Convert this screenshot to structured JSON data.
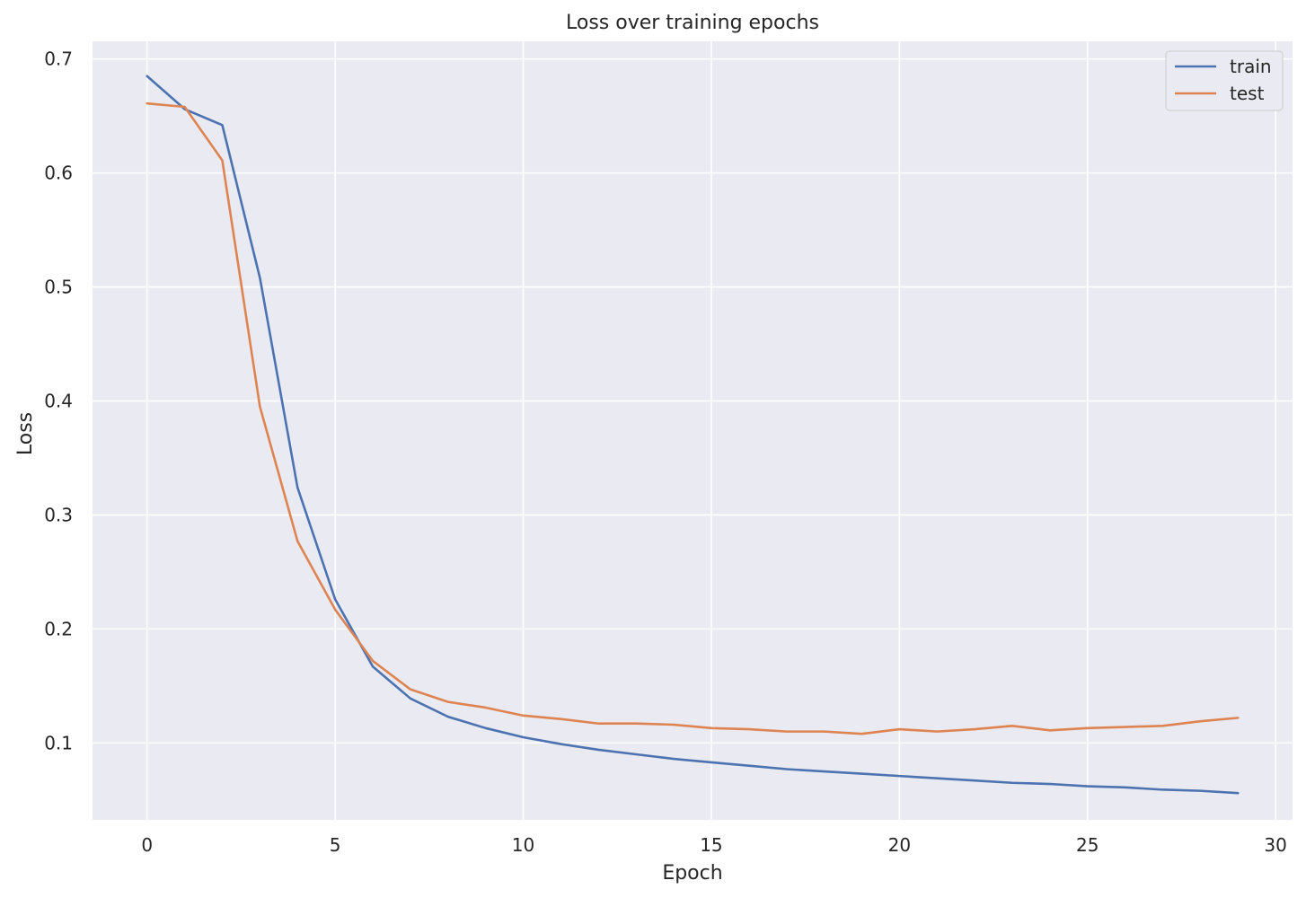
{
  "chart_data": {
    "type": "line",
    "title": "Loss over training epochs",
    "xlabel": "Epoch",
    "ylabel": "Loss",
    "xlim": [
      -1.45,
      30.45
    ],
    "ylim": [
      0.0325,
      0.7155
    ],
    "xticks": [
      0,
      5,
      10,
      15,
      20,
      25,
      30
    ],
    "yticks": [
      0.1,
      0.2,
      0.3,
      0.4,
      0.5,
      0.6,
      0.7
    ],
    "grid": true,
    "legend_position": "top-right",
    "background": "#eaeaf2",
    "x": [
      0,
      1,
      2,
      3,
      4,
      5,
      6,
      7,
      8,
      9,
      10,
      11,
      12,
      13,
      14,
      15,
      16,
      17,
      18,
      19,
      20,
      21,
      22,
      23,
      24,
      25,
      26,
      27,
      28,
      29
    ],
    "series": [
      {
        "name": "train",
        "color": "#4c72b0",
        "values": [
          0.685,
          0.656,
          0.642,
          0.508,
          0.324,
          0.226,
          0.167,
          0.139,
          0.123,
          0.113,
          0.105,
          0.099,
          0.094,
          0.09,
          0.086,
          0.083,
          0.08,
          0.077,
          0.075,
          0.073,
          0.071,
          0.069,
          0.067,
          0.065,
          0.064,
          0.062,
          0.061,
          0.059,
          0.058,
          0.056
        ]
      },
      {
        "name": "test",
        "color": "#dd8452",
        "values": [
          0.661,
          0.658,
          0.611,
          0.395,
          0.277,
          0.217,
          0.172,
          0.147,
          0.136,
          0.131,
          0.124,
          0.121,
          0.117,
          0.117,
          0.116,
          0.113,
          0.112,
          0.11,
          0.11,
          0.108,
          0.112,
          0.11,
          0.112,
          0.115,
          0.111,
          0.113,
          0.114,
          0.115,
          0.119,
          0.122
        ]
      }
    ]
  }
}
